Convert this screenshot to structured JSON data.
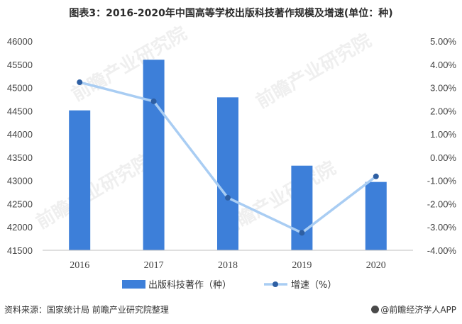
{
  "title": "图表3：2016-2020年中国高等学校出版科技著作规模及增速(单位：种)",
  "source": "资料来源：国家统计局 前瞻产业研究院整理",
  "brand": "@前瞻经济学人APP",
  "watermark": "前瞻产业研究院",
  "colors": {
    "bar": "#3d7fd9",
    "line": "#a9cdf3",
    "marker": "#2e5fa3",
    "axis_text": "#444444"
  },
  "chart_data": {
    "type": "bar",
    "title": "图表3：2016-2020年中国高等学校出版科技著作规模及增速(单位：种)",
    "categories": [
      "2016",
      "2017",
      "2018",
      "2019",
      "2020"
    ],
    "series": [
      {
        "name": "出版科技著作（种）",
        "type": "bar",
        "axis": "left",
        "values": [
          44510,
          45600,
          44790,
          43320,
          42970
        ]
      },
      {
        "name": "增速（%）",
        "type": "line",
        "axis": "right",
        "values": [
          3.23,
          2.41,
          -1.74,
          -3.25,
          -0.82
        ]
      }
    ],
    "y_left": {
      "min": 41500,
      "max": 46000,
      "step": 500,
      "ticks": [
        "41500",
        "42000",
        "42500",
        "43000",
        "43500",
        "44000",
        "44500",
        "45000",
        "45500",
        "46000"
      ]
    },
    "y_right": {
      "min": -4,
      "max": 5,
      "step": 1,
      "ticks": [
        "-4.00%",
        "-3.00%",
        "-2.00%",
        "-1.00%",
        "0.00%",
        "1.00%",
        "2.00%",
        "3.00%",
        "4.00%",
        "5.00%"
      ]
    },
    "grid": false,
    "legend_position": "bottom"
  }
}
